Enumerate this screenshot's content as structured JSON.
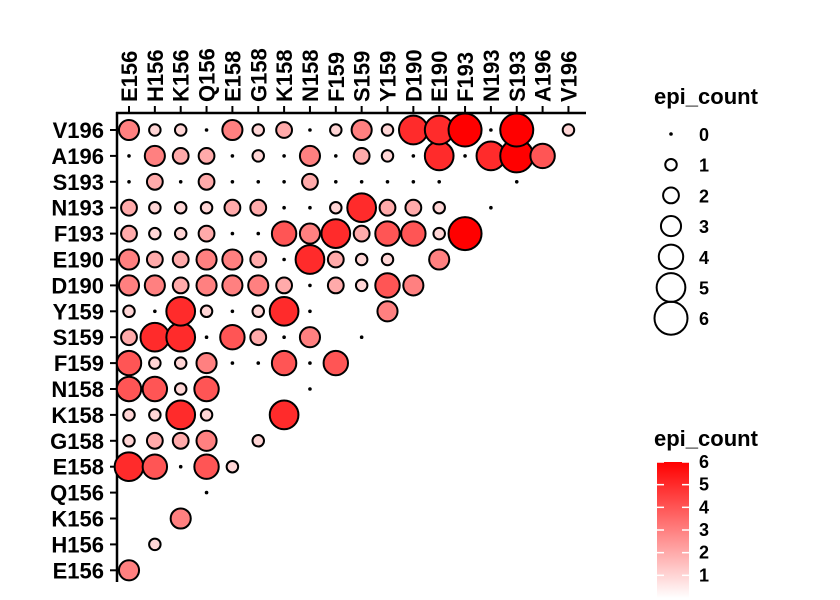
{
  "chart_data": {
    "type": "scatter",
    "title": "",
    "xlabel": "",
    "ylabel": "",
    "x_categories": [
      "E156",
      "H156",
      "K156",
      "Q156",
      "E158",
      "G158",
      "K158",
      "N158",
      "F159",
      "S159",
      "Y159",
      "D190",
      "E190",
      "F193",
      "N193",
      "S193",
      "A196",
      "V196"
    ],
    "y_categories": [
      "E156",
      "H156",
      "K156",
      "Q156",
      "E158",
      "G158",
      "K158",
      "N158",
      "F159",
      "S159",
      "Y159",
      "D190",
      "E190",
      "F193",
      "N193",
      "S193",
      "A196",
      "V196"
    ],
    "value_name": "epi_count",
    "points": [
      {
        "x": "E156",
        "y": "E156",
        "value": 3
      },
      {
        "x": "H156",
        "y": "H156",
        "value": 1
      },
      {
        "x": "K156",
        "y": "K156",
        "value": 3
      },
      {
        "x": "Q156",
        "y": "Q156",
        "value": 0
      },
      {
        "x": "E156",
        "y": "E158",
        "value": 5
      },
      {
        "x": "H156",
        "y": "E158",
        "value": 4
      },
      {
        "x": "K156",
        "y": "E158",
        "value": 0
      },
      {
        "x": "Q156",
        "y": "E158",
        "value": 4
      },
      {
        "x": "E158",
        "y": "E158",
        "value": 1
      },
      {
        "x": "E156",
        "y": "G158",
        "value": 1
      },
      {
        "x": "H156",
        "y": "G158",
        "value": 2
      },
      {
        "x": "K156",
        "y": "G158",
        "value": 2
      },
      {
        "x": "Q156",
        "y": "G158",
        "value": 3
      },
      {
        "x": "G158",
        "y": "G158",
        "value": 1
      },
      {
        "x": "E156",
        "y": "K158",
        "value": 1
      },
      {
        "x": "H156",
        "y": "K158",
        "value": 1
      },
      {
        "x": "K156",
        "y": "K158",
        "value": 5
      },
      {
        "x": "Q156",
        "y": "K158",
        "value": 1
      },
      {
        "x": "K158",
        "y": "K158",
        "value": 5
      },
      {
        "x": "E156",
        "y": "N158",
        "value": 4
      },
      {
        "x": "H156",
        "y": "N158",
        "value": 4
      },
      {
        "x": "K156",
        "y": "N158",
        "value": 1
      },
      {
        "x": "Q156",
        "y": "N158",
        "value": 4
      },
      {
        "x": "N158",
        "y": "N158",
        "value": 0
      },
      {
        "x": "E156",
        "y": "F159",
        "value": 4
      },
      {
        "x": "H156",
        "y": "F159",
        "value": 1
      },
      {
        "x": "K156",
        "y": "F159",
        "value": 1
      },
      {
        "x": "Q156",
        "y": "F159",
        "value": 3
      },
      {
        "x": "E158",
        "y": "F159",
        "value": 0
      },
      {
        "x": "G158",
        "y": "F159",
        "value": 0
      },
      {
        "x": "K158",
        "y": "F159",
        "value": 4
      },
      {
        "x": "N158",
        "y": "F159",
        "value": 0
      },
      {
        "x": "F159",
        "y": "F159",
        "value": 4
      },
      {
        "x": "E156",
        "y": "S159",
        "value": 2
      },
      {
        "x": "H156",
        "y": "S159",
        "value": 5
      },
      {
        "x": "K156",
        "y": "S159",
        "value": 5
      },
      {
        "x": "Q156",
        "y": "S159",
        "value": 0
      },
      {
        "x": "E158",
        "y": "S159",
        "value": 4
      },
      {
        "x": "G158",
        "y": "S159",
        "value": 2
      },
      {
        "x": "K158",
        "y": "S159",
        "value": 0
      },
      {
        "x": "N158",
        "y": "S159",
        "value": 3
      },
      {
        "x": "S159",
        "y": "S159",
        "value": 0
      },
      {
        "x": "E156",
        "y": "Y159",
        "value": 1
      },
      {
        "x": "H156",
        "y": "Y159",
        "value": 0
      },
      {
        "x": "K156",
        "y": "Y159",
        "value": 5
      },
      {
        "x": "Q156",
        "y": "Y159",
        "value": 1
      },
      {
        "x": "E158",
        "y": "Y159",
        "value": 0
      },
      {
        "x": "G158",
        "y": "Y159",
        "value": 1
      },
      {
        "x": "K158",
        "y": "Y159",
        "value": 5
      },
      {
        "x": "N158",
        "y": "Y159",
        "value": 0
      },
      {
        "x": "Y159",
        "y": "Y159",
        "value": 3
      },
      {
        "x": "E156",
        "y": "D190",
        "value": 3
      },
      {
        "x": "H156",
        "y": "D190",
        "value": 3
      },
      {
        "x": "K156",
        "y": "D190",
        "value": 2
      },
      {
        "x": "Q156",
        "y": "D190",
        "value": 3
      },
      {
        "x": "E158",
        "y": "D190",
        "value": 3
      },
      {
        "x": "G158",
        "y": "D190",
        "value": 3
      },
      {
        "x": "K158",
        "y": "D190",
        "value": 2
      },
      {
        "x": "N158",
        "y": "D190",
        "value": 0
      },
      {
        "x": "F159",
        "y": "D190",
        "value": 2
      },
      {
        "x": "S159",
        "y": "D190",
        "value": 1
      },
      {
        "x": "Y159",
        "y": "D190",
        "value": 4
      },
      {
        "x": "D190",
        "y": "D190",
        "value": 3
      },
      {
        "x": "E156",
        "y": "E190",
        "value": 3
      },
      {
        "x": "H156",
        "y": "E190",
        "value": 2
      },
      {
        "x": "K156",
        "y": "E190",
        "value": 2
      },
      {
        "x": "Q156",
        "y": "E190",
        "value": 3
      },
      {
        "x": "E158",
        "y": "E190",
        "value": 3
      },
      {
        "x": "G158",
        "y": "E190",
        "value": 2
      },
      {
        "x": "K158",
        "y": "E190",
        "value": 0
      },
      {
        "x": "N158",
        "y": "E190",
        "value": 5
      },
      {
        "x": "F159",
        "y": "E190",
        "value": 2
      },
      {
        "x": "S159",
        "y": "E190",
        "value": 1
      },
      {
        "x": "Y159",
        "y": "E190",
        "value": 1
      },
      {
        "x": "E190",
        "y": "E190",
        "value": 3
      },
      {
        "x": "E156",
        "y": "F193",
        "value": 2
      },
      {
        "x": "H156",
        "y": "F193",
        "value": 1
      },
      {
        "x": "K156",
        "y": "F193",
        "value": 1
      },
      {
        "x": "Q156",
        "y": "F193",
        "value": 2
      },
      {
        "x": "E158",
        "y": "F193",
        "value": 0
      },
      {
        "x": "G158",
        "y": "F193",
        "value": 0
      },
      {
        "x": "K158",
        "y": "F193",
        "value": 4
      },
      {
        "x": "N158",
        "y": "F193",
        "value": 3
      },
      {
        "x": "F159",
        "y": "F193",
        "value": 5
      },
      {
        "x": "S159",
        "y": "F193",
        "value": 2
      },
      {
        "x": "Y159",
        "y": "F193",
        "value": 4
      },
      {
        "x": "D190",
        "y": "F193",
        "value": 4
      },
      {
        "x": "E190",
        "y": "F193",
        "value": 1
      },
      {
        "x": "F193",
        "y": "F193",
        "value": 6
      },
      {
        "x": "E156",
        "y": "N193",
        "value": 2
      },
      {
        "x": "H156",
        "y": "N193",
        "value": 1
      },
      {
        "x": "K156",
        "y": "N193",
        "value": 1
      },
      {
        "x": "Q156",
        "y": "N193",
        "value": 1
      },
      {
        "x": "E158",
        "y": "N193",
        "value": 2
      },
      {
        "x": "G158",
        "y": "N193",
        "value": 2
      },
      {
        "x": "K158",
        "y": "N193",
        "value": 0
      },
      {
        "x": "N158",
        "y": "N193",
        "value": 0
      },
      {
        "x": "F159",
        "y": "N193",
        "value": 1
      },
      {
        "x": "S159",
        "y": "N193",
        "value": 5
      },
      {
        "x": "Y159",
        "y": "N193",
        "value": 2
      },
      {
        "x": "D190",
        "y": "N193",
        "value": 2
      },
      {
        "x": "E190",
        "y": "N193",
        "value": 1
      },
      {
        "x": "N193",
        "y": "N193",
        "value": 0
      },
      {
        "x": "E156",
        "y": "S193",
        "value": 0
      },
      {
        "x": "H156",
        "y": "S193",
        "value": 2
      },
      {
        "x": "K156",
        "y": "S193",
        "value": 0
      },
      {
        "x": "Q156",
        "y": "S193",
        "value": 2
      },
      {
        "x": "E158",
        "y": "S193",
        "value": 0
      },
      {
        "x": "G158",
        "y": "S193",
        "value": 0
      },
      {
        "x": "K158",
        "y": "S193",
        "value": 0
      },
      {
        "x": "N158",
        "y": "S193",
        "value": 2
      },
      {
        "x": "F159",
        "y": "S193",
        "value": 0
      },
      {
        "x": "S159",
        "y": "S193",
        "value": 0
      },
      {
        "x": "Y159",
        "y": "S193",
        "value": 0
      },
      {
        "x": "D190",
        "y": "S193",
        "value": 0
      },
      {
        "x": "E190",
        "y": "S193",
        "value": 0
      },
      {
        "x": "S193",
        "y": "S193",
        "value": 0
      },
      {
        "x": "E156",
        "y": "A196",
        "value": 0
      },
      {
        "x": "H156",
        "y": "A196",
        "value": 3
      },
      {
        "x": "K156",
        "y": "A196",
        "value": 2
      },
      {
        "x": "Q156",
        "y": "A196",
        "value": 2
      },
      {
        "x": "E158",
        "y": "A196",
        "value": 0
      },
      {
        "x": "G158",
        "y": "A196",
        "value": 1
      },
      {
        "x": "K158",
        "y": "A196",
        "value": 0
      },
      {
        "x": "N158",
        "y": "A196",
        "value": 3
      },
      {
        "x": "F159",
        "y": "A196",
        "value": 0
      },
      {
        "x": "S159",
        "y": "A196",
        "value": 2
      },
      {
        "x": "Y159",
        "y": "A196",
        "value": 1
      },
      {
        "x": "D190",
        "y": "A196",
        "value": 0
      },
      {
        "x": "E190",
        "y": "A196",
        "value": 5
      },
      {
        "x": "F193",
        "y": "A196",
        "value": 0
      },
      {
        "x": "N193",
        "y": "A196",
        "value": 5
      },
      {
        "x": "S193",
        "y": "A196",
        "value": 6
      },
      {
        "x": "A196",
        "y": "A196",
        "value": 4
      },
      {
        "x": "E156",
        "y": "V196",
        "value": 3
      },
      {
        "x": "H156",
        "y": "V196",
        "value": 1
      },
      {
        "x": "K156",
        "y": "V196",
        "value": 1
      },
      {
        "x": "Q156",
        "y": "V196",
        "value": 0
      },
      {
        "x": "E158",
        "y": "V196",
        "value": 3
      },
      {
        "x": "G158",
        "y": "V196",
        "value": 1
      },
      {
        "x": "K158",
        "y": "V196",
        "value": 2
      },
      {
        "x": "N158",
        "y": "V196",
        "value": 0
      },
      {
        "x": "F159",
        "y": "V196",
        "value": 1
      },
      {
        "x": "S159",
        "y": "V196",
        "value": 3
      },
      {
        "x": "Y159",
        "y": "V196",
        "value": 1
      },
      {
        "x": "D190",
        "y": "V196",
        "value": 5
      },
      {
        "x": "E190",
        "y": "V196",
        "value": 5
      },
      {
        "x": "F193",
        "y": "V196",
        "value": 6
      },
      {
        "x": "N193",
        "y": "V196",
        "value": 0
      },
      {
        "x": "S193",
        "y": "V196",
        "value": 6
      },
      {
        "x": "V196",
        "y": "V196",
        "value": 1
      }
    ],
    "size_legend": {
      "title": "epi_count",
      "values": [
        0,
        1,
        2,
        3,
        4,
        5,
        6
      ]
    },
    "color_legend": {
      "title": "epi_count",
      "range": [
        0,
        6
      ],
      "ticks": [
        1,
        2,
        3,
        4,
        5,
        6
      ],
      "low_color": "#ffffff",
      "high_color": "#ff0000"
    },
    "grid": false,
    "legend_position": "right"
  }
}
